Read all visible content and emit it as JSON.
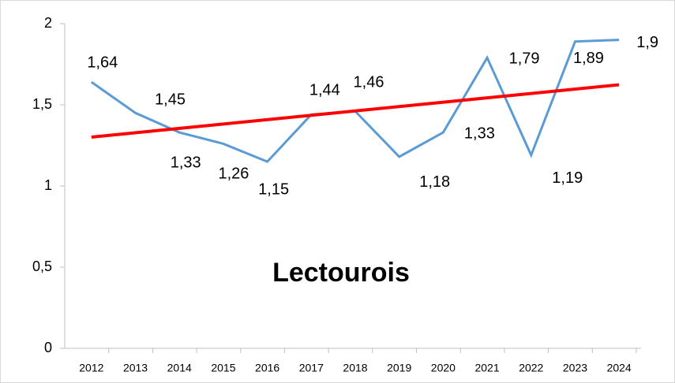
{
  "chart_data": {
    "type": "line",
    "title": "Lectourois",
    "categories": [
      "2012",
      "2013",
      "2014",
      "2015",
      "2016",
      "2017",
      "2018",
      "2019",
      "2020",
      "2021",
      "2022",
      "2023",
      "2024"
    ],
    "series": [
      {
        "color": "#5b9bd5",
        "values": [
          1.64,
          1.45,
          1.33,
          1.26,
          1.15,
          1.44,
          1.46,
          1.18,
          1.33,
          1.79,
          1.19,
          1.89,
          1.9
        ],
        "value_labels": [
          "1,64",
          "1,45",
          "1,33",
          "1,26",
          "1,15",
          "1,44",
          "1,46",
          "1,18",
          "1,33",
          "1,79",
          "1,19",
          "1,89",
          "1,9"
        ]
      }
    ],
    "trendline": {
      "type": "linear",
      "color": "#ff0000"
    },
    "ylim": [
      0,
      2
    ],
    "yticks": [
      0,
      {
        "value": 0.5,
        "label": "0,5"
      },
      1,
      {
        "value": 1.5,
        "label": "1,5"
      },
      2
    ],
    "grid": false
  }
}
